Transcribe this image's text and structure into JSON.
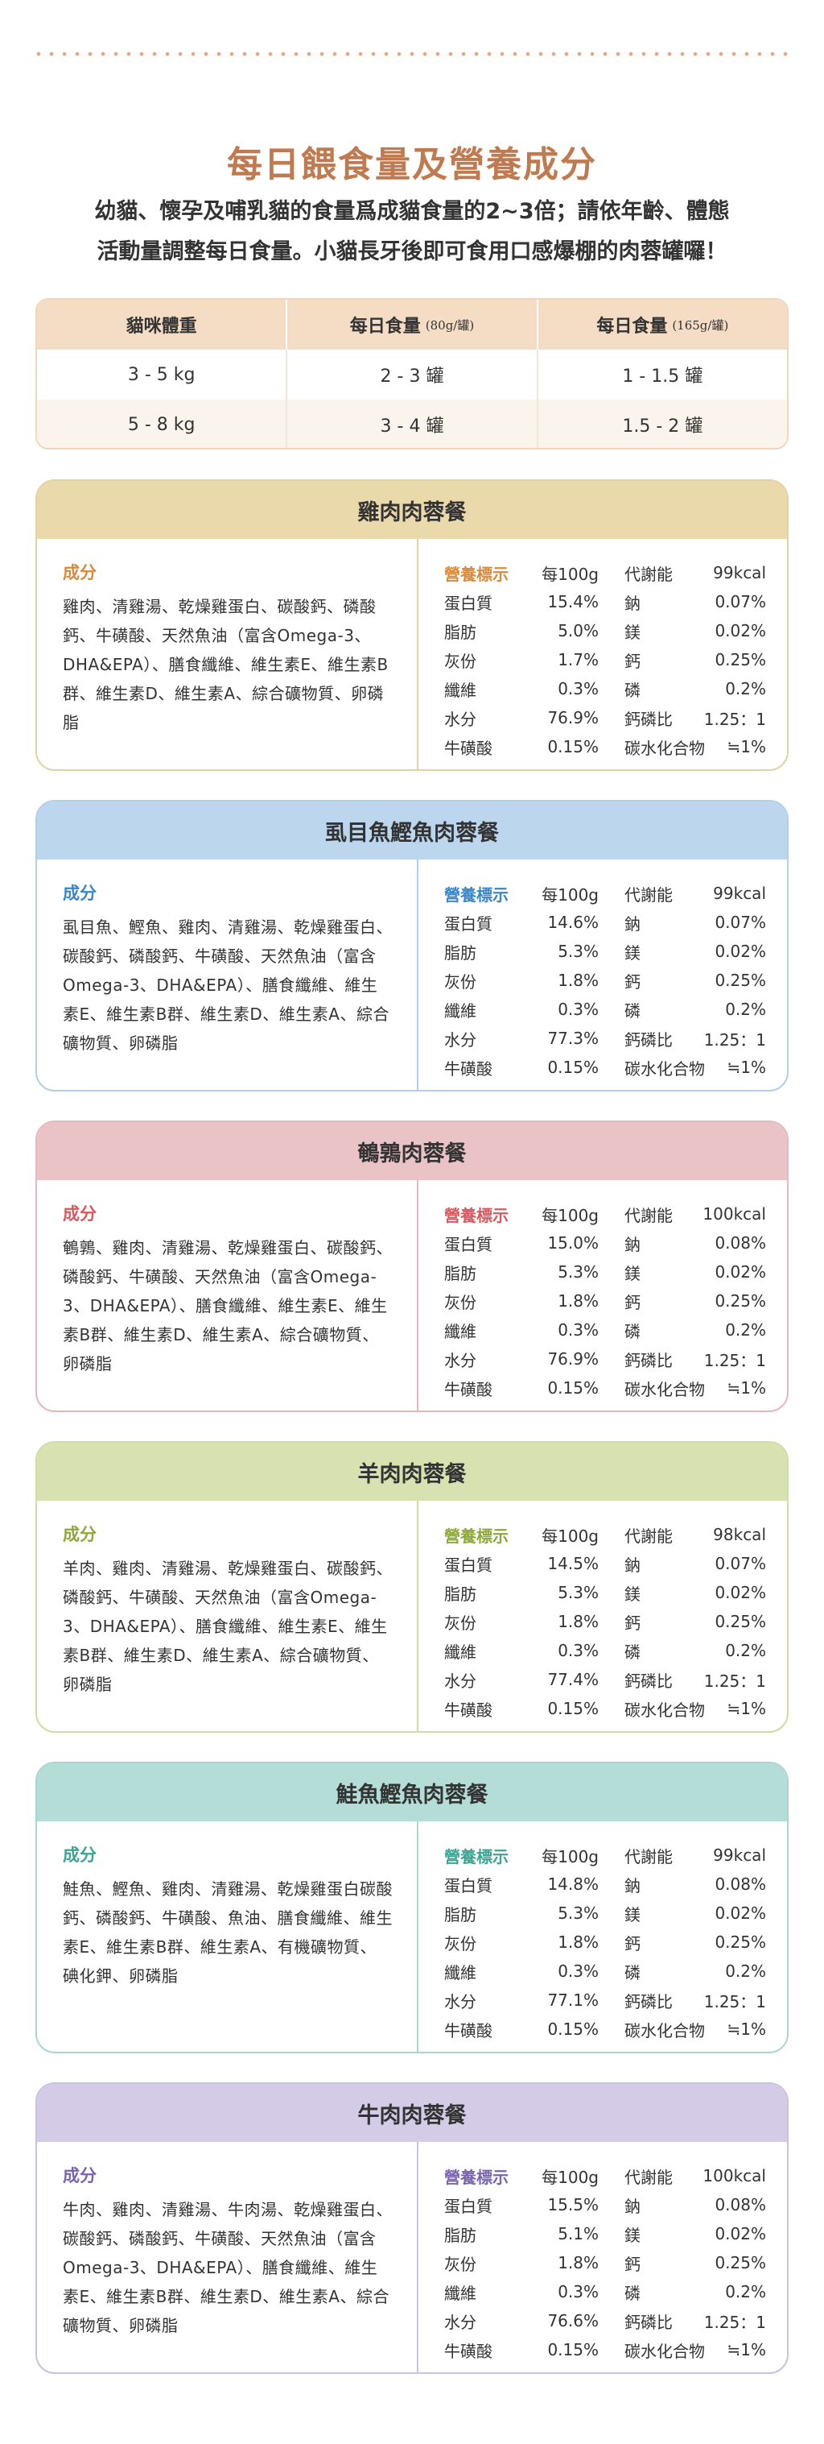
{
  "header": {
    "title": "每日餵食量及營養成分",
    "subtitle_line1": "幼貓、懷孕及哺乳貓的食量爲成貓食量的2~3倍；請依年齡、體態",
    "subtitle_line2": "活動量調整每日食量。小貓長牙後即可食用口感爆棚的肉蓉罐囉！"
  },
  "feeding_table": {
    "headers": [
      {
        "label": "貓咪體重",
        "unit": ""
      },
      {
        "label": "每日食量",
        "unit": "(80g/罐)"
      },
      {
        "label": "每日食量",
        "unit": "(165g/罐)"
      }
    ],
    "rows": [
      [
        "3 - 5 kg",
        "2 - 3 罐",
        "1 - 1.5 罐"
      ],
      [
        "5 - 8 kg",
        "3 - 4 罐",
        "1.5 - 2 罐"
      ]
    ]
  },
  "labels": {
    "ingredients": "成分",
    "standard": "營養標示",
    "per": "每100g",
    "metabolic": "代謝能",
    "protein": "蛋白質",
    "fat": "脂肪",
    "ash": "灰份",
    "fiber": "纖維",
    "moisture": "水分",
    "taurine": "牛磺酸",
    "sodium": "鈉",
    "magnesium": "鎂",
    "calcium": "鈣",
    "phosphorus": "磷",
    "ca_p_ratio": "鈣磷比",
    "carbs": "碳水化合物"
  },
  "products": [
    {
      "name": "雞肉肉蓉餐",
      "colors": {
        "head": "#ead9ab",
        "border": "#e3d3a4",
        "accent": "#d88a3d"
      },
      "ingredients": "雞肉、清雞湯、乾燥雞蛋白、碳酸鈣、磷酸鈣、牛磺酸、天然魚油（富含Omega-3、DHA&EPA）、膳食纖維、維生素E、維生素B群、維生素D、維生素A、綜合礦物質、卵磷脂",
      "energy": "99kcal",
      "protein": "15.4%",
      "fat": "5.0%",
      "ash": "1.7%",
      "fiber": "0.3%",
      "moisture": "76.9%",
      "taurine": "0.15%",
      "sodium": "0.07%",
      "magnesium": "0.02%",
      "calcium": "0.25%",
      "phosphorus": "0.2%",
      "ca_p_ratio": "1.25：1",
      "carbs": "≒1%"
    },
    {
      "name": "虱目魚鰹魚肉蓉餐",
      "colors": {
        "head": "#bcd6ee",
        "border": "#b3cfe8",
        "accent": "#3b86c4"
      },
      "ingredients": "虱目魚、鰹魚、雞肉、清雞湯、乾燥雞蛋白、碳酸鈣、磷酸鈣、牛磺酸、天然魚油（富含Omega-3、DHA&EPA）、膳食纖維、維生素E、維生素B群、維生素D、維生素A、綜合礦物質、卵磷脂",
      "energy": "99kcal",
      "protein": "14.6%",
      "fat": "5.3%",
      "ash": "1.8%",
      "fiber": "0.3%",
      "moisture": "77.3%",
      "taurine": "0.15%",
      "sodium": "0.07%",
      "magnesium": "0.02%",
      "calcium": "0.25%",
      "phosphorus": "0.2%",
      "ca_p_ratio": "1.25：1",
      "carbs": "≒1%"
    },
    {
      "name": "鵪鶉肉蓉餐",
      "colors": {
        "head": "#e9c3c5",
        "border": "#e4b9bb",
        "accent": "#d45a5f"
      },
      "ingredients": "鵪鶉、雞肉、清雞湯、乾燥雞蛋白、碳酸鈣、磷酸鈣、牛磺酸、天然魚油（富含Omega-3、DHA&EPA）、膳食纖維、維生素E、維生素B群、維生素D、維生素A、綜合礦物質、卵磷脂",
      "energy": "100kcal",
      "protein": "15.0%",
      "fat": "5.3%",
      "ash": "1.8%",
      "fiber": "0.3%",
      "moisture": "76.9%",
      "taurine": "0.15%",
      "sodium": "0.08%",
      "magnesium": "0.02%",
      "calcium": "0.25%",
      "phosphorus": "0.2%",
      "ca_p_ratio": "1.25：1",
      "carbs": "≒1%"
    },
    {
      "name": "羊肉肉蓉餐",
      "colors": {
        "head": "#d7e2b0",
        "border": "#cfdca5",
        "accent": "#8ea83a"
      },
      "ingredients": "羊肉、雞肉、清雞湯、乾燥雞蛋白、碳酸鈣、磷酸鈣、牛磺酸、天然魚油（富含Omega-3、DHA&EPA）、膳食纖維、維生素E、維生素B群、維生素D、維生素A、綜合礦物質、卵磷脂",
      "energy": "98kcal",
      "protein": "14.5%",
      "fat": "5.3%",
      "ash": "1.8%",
      "fiber": "0.3%",
      "moisture": "77.4%",
      "taurine": "0.15%",
      "sodium": "0.07%",
      "magnesium": "0.02%",
      "calcium": "0.25%",
      "phosphorus": "0.2%",
      "ca_p_ratio": "1.25：1",
      "carbs": "≒1%"
    },
    {
      "name": "鮭魚鰹魚肉蓉餐",
      "colors": {
        "head": "#b3ddd6",
        "border": "#a9d6ce",
        "accent": "#3ba494"
      },
      "ingredients": "鮭魚、鰹魚、雞肉、清雞湯、乾燥雞蛋白碳酸鈣、磷酸鈣、牛磺酸、魚油、膳食纖維、維生素E、維生素B群、維生素A、有機礦物質、碘化鉀、卵磷脂",
      "energy": "99kcal",
      "protein": "14.8%",
      "fat": "5.3%",
      "ash": "1.8%",
      "fiber": "0.3%",
      "moisture": "77.1%",
      "taurine": "0.15%",
      "sodium": "0.08%",
      "magnesium": "0.02%",
      "calcium": "0.25%",
      "phosphorus": "0.2%",
      "ca_p_ratio": "1.25：1",
      "carbs": "≒1%"
    },
    {
      "name": "牛肉肉蓉餐",
      "colors": {
        "head": "#d4cbe6",
        "border": "#cbc1e0",
        "accent": "#7a64b0"
      },
      "ingredients": "牛肉、雞肉、清雞湯、牛肉湯、乾燥雞蛋白、碳酸鈣、磷酸鈣、牛磺酸、天然魚油（富含Omega-3、DHA&EPA）、膳食纖維、維生素E、維生素B群、維生素D、維生素A、綜合礦物質、卵磷脂",
      "energy": "100kcal",
      "protein": "15.5%",
      "fat": "5.1%",
      "ash": "1.8%",
      "fiber": "0.3%",
      "moisture": "76.6%",
      "taurine": "0.15%",
      "sodium": "0.08%",
      "magnesium": "0.02%",
      "calcium": "0.25%",
      "phosphorus": "0.2%",
      "ca_p_ratio": "1.25：1",
      "carbs": "≒1%"
    }
  ]
}
